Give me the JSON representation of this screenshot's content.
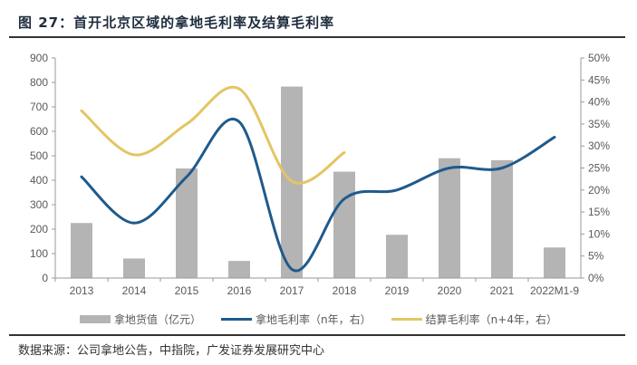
{
  "title": "图 27：首开北京区域的拿地毛利率及结算毛利率",
  "source": "数据来源：公司拿地公告，中指院，广发证券发展研究中心",
  "chart_data": {
    "type": "bar+line",
    "categories": [
      "2013",
      "2014",
      "2015",
      "2016",
      "2017",
      "2018",
      "2019",
      "2020",
      "2021",
      "2022M1-9"
    ],
    "left_axis": {
      "ylim": [
        0,
        900
      ],
      "ticks": [
        "0",
        "100",
        "200",
        "300",
        "400",
        "500",
        "600",
        "700",
        "800",
        "900"
      ]
    },
    "right_axis": {
      "ylim": [
        0,
        50
      ],
      "ticks": [
        "0%",
        "5%",
        "10%",
        "15%",
        "20%",
        "25%",
        "30%",
        "35%",
        "40%",
        "45%",
        "50%"
      ]
    },
    "series": [
      {
        "name": "拿地货值（亿元）",
        "type": "bar",
        "axis": "left",
        "color": "#b4b4b4",
        "values": [
          225,
          80,
          448,
          70,
          783,
          435,
          177,
          490,
          482,
          125
        ]
      },
      {
        "name": "拿地毛利率（n年，右）",
        "type": "line",
        "axis": "right",
        "color": "#1f5a8c",
        "values": [
          23,
          12.5,
          23,
          35.5,
          2,
          18,
          20,
          25,
          25,
          32
        ]
      },
      {
        "name": "结算毛利率（n+4年，右）",
        "type": "line",
        "axis": "right",
        "color": "#e3c564",
        "values": [
          38,
          28,
          35,
          43,
          22,
          28.5,
          null,
          null,
          null,
          null
        ]
      }
    ],
    "legend_position": "bottom",
    "grid": false
  }
}
